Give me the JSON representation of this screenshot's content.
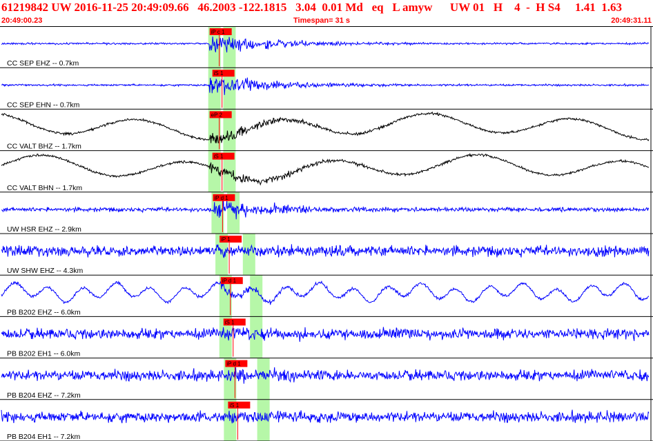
{
  "header": {
    "title": "61219842 UW 2016-11-25 20:49:09.66   46.2003 -122.1815   3.04  0.01 Md   eq   L amyw      UW 01   H    4  -  H S4     1.41  1.63",
    "start_time": "20:49:00.23",
    "timespan_label": "Timespan=  31 s",
    "end_time": "20:49:31.11"
  },
  "colors": {
    "text_red": "#ff0000",
    "trace_blue": "#0000ff",
    "trace_black": "#000000",
    "pick_red": "#ff0000",
    "highlight_green": "#b6f7a8",
    "separator": "#000000"
  },
  "channels": [
    {
      "label": "CC SEP EHZ -- 0.7km",
      "color": "blue",
      "style": "quiet",
      "pick": "iP c 1",
      "t0": 0.321,
      "t1": 0.344
    },
    {
      "label": "CC SEP EHN -- 0.7km",
      "color": "blue",
      "style": "quiet",
      "pick": "iS 1",
      "t0": 0.321,
      "t1": 0.344
    },
    {
      "label": "CC VALT BHZ -- 1.7km",
      "color": "black",
      "style": "wavy",
      "pick": "eP 2",
      "t0": 0.321,
      "t1": 0.344
    },
    {
      "label": "CC VALT BHN -- 1.7km",
      "color": "black",
      "style": "wavy",
      "pick": "iS 1",
      "t0": 0.321,
      "t1": 0.344
    },
    {
      "label": "UW HSR EHZ -- 2.9km",
      "color": "blue",
      "style": "medium",
      "pick": "iP d 1",
      "t0": 0.326,
      "t1": 0.35
    },
    {
      "label": "UW SHW EHZ -- 4.3km",
      "color": "blue",
      "style": "noisy",
      "pick": "iP 1",
      "t0": 0.332,
      "t1": 0.374
    },
    {
      "label": "PB B202 EHZ -- 6.0km",
      "color": "blue",
      "style": "longper",
      "pick": "iP d 1",
      "t0": 0.338,
      "t1": 0.385
    },
    {
      "label": "PB B202 EH1 -- 6.0km",
      "color": "blue",
      "style": "noisy",
      "pick": "iS 1",
      "t0": 0.338,
      "t1": 0.385
    },
    {
      "label": "PB B204 EHZ -- 7.2km",
      "color": "blue",
      "style": "noisy",
      "pick": "iP d 1",
      "t0": 0.345,
      "t1": 0.396
    },
    {
      "label": "PB B204 EH1 -- 7.2km",
      "color": "blue",
      "style": "noisy",
      "pick": "iS 1",
      "t0": 0.345,
      "t1": 0.396
    }
  ]
}
